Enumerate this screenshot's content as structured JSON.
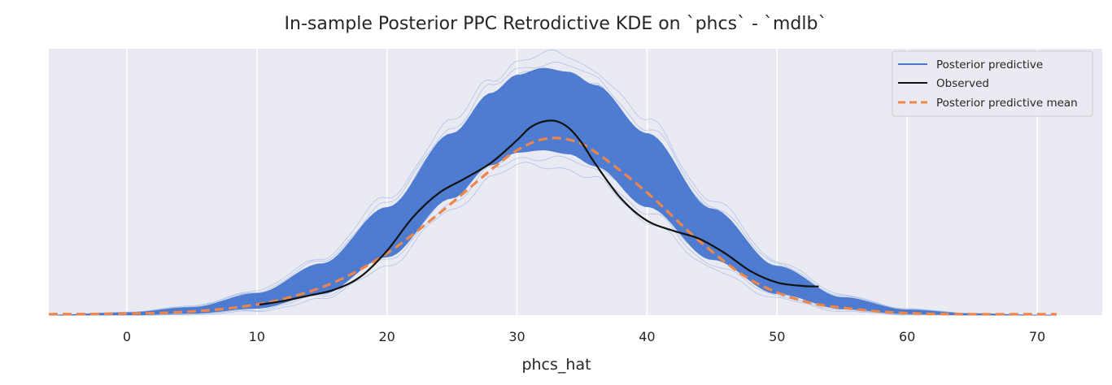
{
  "chart_data": {
    "type": "line",
    "title": "In-sample Posterior PPC Retrodictive KDE on `phcs` - `mdlb`",
    "xlabel": "phcs_hat",
    "ylabel": "",
    "xlim": [
      -6,
      75
    ],
    "ylim": [
      0,
      0.053
    ],
    "x_ticks": [
      0,
      10,
      20,
      30,
      40,
      50,
      60,
      70
    ],
    "x_tick_labels": [
      "0",
      "10",
      "20",
      "30",
      "40",
      "50",
      "60",
      "70"
    ],
    "grid": "vertical",
    "legend_position": "top-right",
    "colors": {
      "background": "#eaeaf2",
      "posterior_predictive": "#4878d0",
      "observed": "#111111",
      "mean": "#ee854a",
      "grid": "#ffffff"
    },
    "series": [
      {
        "name": "Posterior predictive",
        "style": "band",
        "x": [
          -6,
          0,
          5,
          10,
          15,
          20,
          25,
          28,
          30,
          32,
          34,
          36,
          40,
          45,
          50,
          55,
          60,
          65,
          70,
          71.5
        ],
        "lower": [
          0,
          0,
          0.0003,
          0.0013,
          0.0042,
          0.0115,
          0.0232,
          0.0298,
          0.0323,
          0.0328,
          0.032,
          0.0296,
          0.0215,
          0.011,
          0.0042,
          0.0012,
          0.0002,
          0.0,
          0,
          0
        ],
        "upper": [
          0,
          0.0005,
          0.0016,
          0.0044,
          0.0103,
          0.0215,
          0.0362,
          0.0442,
          0.0478,
          0.0492,
          0.0484,
          0.0458,
          0.0362,
          0.0212,
          0.0098,
          0.0036,
          0.0011,
          0.0003,
          0,
          0
        ]
      },
      {
        "name": "Observed",
        "style": "solid",
        "x": [
          10.2,
          12,
          14,
          16,
          18,
          20,
          22,
          24,
          26,
          28,
          30,
          31,
          32,
          33,
          34,
          35,
          36,
          38,
          40,
          42,
          44,
          46,
          48,
          50,
          52,
          53.2
        ],
        "y": [
          0.0021,
          0.0028,
          0.0039,
          0.0051,
          0.0077,
          0.0128,
          0.0195,
          0.0243,
          0.0272,
          0.0303,
          0.0348,
          0.0373,
          0.0385,
          0.0386,
          0.0372,
          0.0342,
          0.0302,
          0.0232,
          0.0188,
          0.0168,
          0.0152,
          0.0123,
          0.0087,
          0.0065,
          0.0058,
          0.0057
        ]
      },
      {
        "name": "Posterior predictive mean",
        "style": "dashed",
        "x": [
          -6,
          0,
          4,
          8,
          12,
          16,
          20,
          24,
          28,
          30,
          32,
          34,
          36,
          40,
          44,
          48,
          52,
          56,
          60,
          65,
          71.5
        ],
        "y": [
          0.0002,
          0.0003,
          0.0006,
          0.0014,
          0.0032,
          0.0066,
          0.0123,
          0.0202,
          0.0289,
          0.0328,
          0.035,
          0.0349,
          0.0325,
          0.0244,
          0.0148,
          0.007,
          0.0028,
          0.0012,
          0.0004,
          0.0002,
          0.0002
        ]
      }
    ]
  }
}
